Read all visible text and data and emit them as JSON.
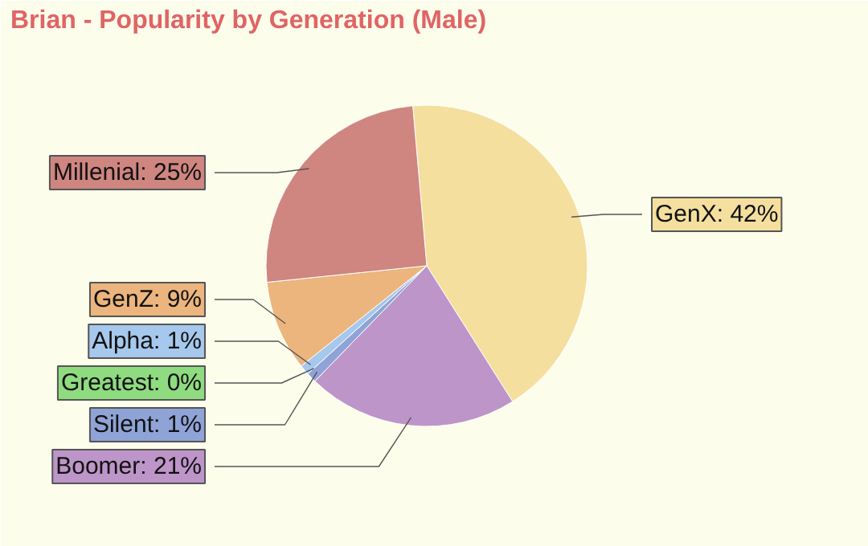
{
  "chart_data": {
    "type": "pie",
    "title": "Brian - Popularity by Generation (Male)",
    "categories": [
      "GenX",
      "Boomer",
      "Silent",
      "Greatest",
      "Alpha",
      "GenZ",
      "Millenial"
    ],
    "values": [
      42,
      21,
      1,
      0,
      1,
      9,
      25
    ],
    "value_labels": [
      "42%",
      "21%",
      "1%",
      "0%",
      "1%",
      "9%",
      "25%"
    ],
    "colors": [
      "#f5df9e",
      "#bd95c8",
      "#8fa3d6",
      "#8edb80",
      "#a6c8ec",
      "#ebb57d",
      "#cf8580"
    ]
  }
}
